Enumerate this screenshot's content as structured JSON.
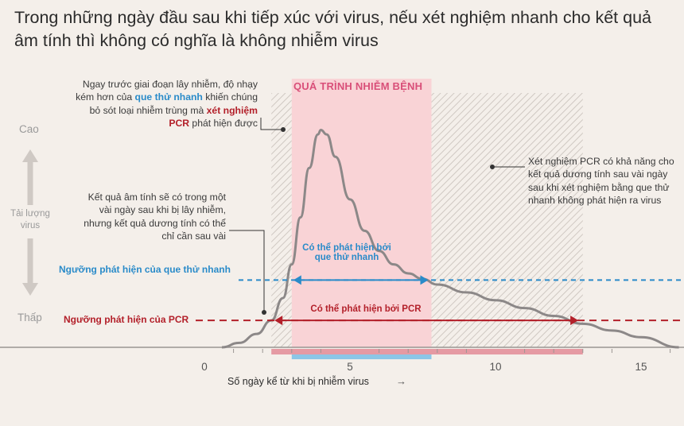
{
  "title": "Trong những ngày đầu sau khi tiếp xúc với virus, nếu xét nghiệm nhanh cho kết quả âm tính thì không có nghĩa là không nhiễm virus",
  "phase_label": "QUÁ TRÌNH NHIỄM BỆNH",
  "side": {
    "high": "Cao",
    "low": "Thấp",
    "axis_name": "Tải lượng virus"
  },
  "notes": {
    "a": {
      "part1": "Ngay trước giai đoạn lây nhiễm, độ nhạy kém hơn của ",
      "blue": "que thử nhanh",
      "part2": " khiến chúng bỏ sót loại nhiễm trùng mà ",
      "red": "xét nghiệm PCR",
      "part3": " phát hiện được"
    },
    "b": "Kết quả âm tính sẽ có trong một vài ngày sau khi bị lây nhiễm, nhưng kết quả dương tính có thể chỉ cần sau vài",
    "c": "Xét nghiệm PCR có khả năng cho kết quả dương tính sau vài ngày sau khi xét nghiệm bằng que thử nhanh không phát hiện ra virus"
  },
  "thresholds": {
    "rapid_label": "Ngưỡng phát hiện của que thử nhanh",
    "pcr_label": "Ngưỡng phát hiện của PCR",
    "rapid_caption": "Có thể phát hiện bởi que thử nhanh",
    "pcr_caption": "Có thể phát hiện bởi PCR"
  },
  "xaxis": {
    "label": "Số ngày kể từ khi bị nhiễm virus",
    "arrow": "→"
  },
  "colors": {
    "rapid": "#2a8bc9",
    "pcr": "#b3202a",
    "infection": "#f9d3d6",
    "curve": "#8c8888",
    "phase_text": "#d94f79"
  },
  "chart_data": {
    "type": "line",
    "title": "Trong những ngày đầu sau khi tiếp xúc với virus, nếu xét nghiệm nhanh cho kết quả âm tính thì không có nghĩa là không nhiễm virus",
    "xlabel": "Số ngày kể từ khi bị nhiễm virus",
    "ylabel": "Tải lượng virus",
    "xlim": [
      -7,
      16.3
    ],
    "ylim": [
      0,
      1
    ],
    "x_ticks": [
      0,
      5,
      10,
      15
    ],
    "y_ticks": [
      "Thấp",
      "Cao"
    ],
    "series": [
      {
        "x": [
          0.6,
          1.2,
          1.8,
          2.3,
          2.7,
          3.0,
          3.3,
          3.6,
          3.9,
          4.0,
          4.2,
          4.5,
          5.0,
          5.5,
          6.0,
          6.5,
          7.0,
          7.5,
          8.0,
          9.0,
          10.0,
          11.0,
          12.0,
          13.0,
          14.0,
          15.0,
          16.3
        ],
        "y": [
          0.0,
          0.02,
          0.06,
          0.12,
          0.22,
          0.37,
          0.58,
          0.8,
          0.95,
          0.97,
          0.95,
          0.85,
          0.66,
          0.52,
          0.43,
          0.37,
          0.33,
          0.305,
          0.28,
          0.245,
          0.21,
          0.175,
          0.14,
          0.105,
          0.075,
          0.045,
          0.0
        ]
      }
    ],
    "thresholds": [
      {
        "name": "Ngưỡng phát hiện của que thử nhanh",
        "y": 0.3
      },
      {
        "name": "Ngưỡng phát hiện của PCR",
        "y": 0.12
      }
    ],
    "detection_windows": [
      {
        "name": "Có thể phát hiện bởi que thử nhanh",
        "x": [
          3,
          7.8
        ]
      },
      {
        "name": "Có thể phát hiện bởi PCR",
        "x": [
          2.3,
          12.9
        ]
      }
    ],
    "infection_period": [
      3,
      7.8
    ],
    "hatched_zones": [
      [
        2.3,
        3
      ],
      [
        7.8,
        13
      ]
    ]
  }
}
